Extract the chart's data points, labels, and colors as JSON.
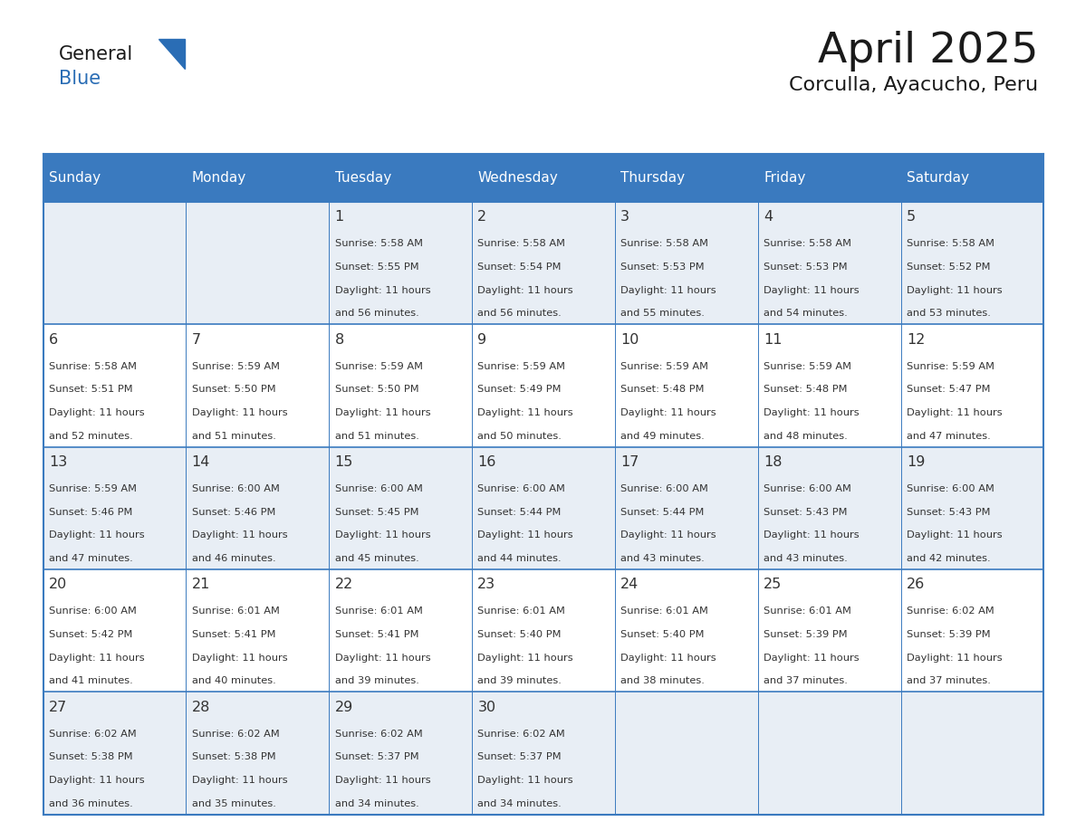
{
  "title": "April 2025",
  "subtitle": "Corculla, Ayacucho, Peru",
  "header_color": "#3a7abf",
  "header_text_color": "#ffffff",
  "border_color": "#3a7abf",
  "row_sep_color": "#3a7abf",
  "cell_bg_row0": "#e8eef5",
  "cell_bg_row1": "#ffffff",
  "cell_bg_row2": "#e8eef5",
  "cell_bg_row3": "#ffffff",
  "cell_bg_row4": "#e8eef5",
  "day_names": [
    "Sunday",
    "Monday",
    "Tuesday",
    "Wednesday",
    "Thursday",
    "Friday",
    "Saturday"
  ],
  "title_color": "#1a1a1a",
  "subtitle_color": "#1a1a1a",
  "logo_general_color": "#1a1a1a",
  "logo_blue_color": "#2a6db5",
  "text_color": "#333333",
  "days": [
    {
      "day": 1,
      "col": 2,
      "row": 0,
      "sunrise": "5:58 AM",
      "sunset": "5:55 PM",
      "daylight_h": "11 hours",
      "daylight_m": "56 minutes."
    },
    {
      "day": 2,
      "col": 3,
      "row": 0,
      "sunrise": "5:58 AM",
      "sunset": "5:54 PM",
      "daylight_h": "11 hours",
      "daylight_m": "56 minutes."
    },
    {
      "day": 3,
      "col": 4,
      "row": 0,
      "sunrise": "5:58 AM",
      "sunset": "5:53 PM",
      "daylight_h": "11 hours",
      "daylight_m": "55 minutes."
    },
    {
      "day": 4,
      "col": 5,
      "row": 0,
      "sunrise": "5:58 AM",
      "sunset": "5:53 PM",
      "daylight_h": "11 hours",
      "daylight_m": "54 minutes."
    },
    {
      "day": 5,
      "col": 6,
      "row": 0,
      "sunrise": "5:58 AM",
      "sunset": "5:52 PM",
      "daylight_h": "11 hours",
      "daylight_m": "53 minutes."
    },
    {
      "day": 6,
      "col": 0,
      "row": 1,
      "sunrise": "5:58 AM",
      "sunset": "5:51 PM",
      "daylight_h": "11 hours",
      "daylight_m": "52 minutes."
    },
    {
      "day": 7,
      "col": 1,
      "row": 1,
      "sunrise": "5:59 AM",
      "sunset": "5:50 PM",
      "daylight_h": "11 hours",
      "daylight_m": "51 minutes."
    },
    {
      "day": 8,
      "col": 2,
      "row": 1,
      "sunrise": "5:59 AM",
      "sunset": "5:50 PM",
      "daylight_h": "11 hours",
      "daylight_m": "51 minutes."
    },
    {
      "day": 9,
      "col": 3,
      "row": 1,
      "sunrise": "5:59 AM",
      "sunset": "5:49 PM",
      "daylight_h": "11 hours",
      "daylight_m": "50 minutes."
    },
    {
      "day": 10,
      "col": 4,
      "row": 1,
      "sunrise": "5:59 AM",
      "sunset": "5:48 PM",
      "daylight_h": "11 hours",
      "daylight_m": "49 minutes."
    },
    {
      "day": 11,
      "col": 5,
      "row": 1,
      "sunrise": "5:59 AM",
      "sunset": "5:48 PM",
      "daylight_h": "11 hours",
      "daylight_m": "48 minutes."
    },
    {
      "day": 12,
      "col": 6,
      "row": 1,
      "sunrise": "5:59 AM",
      "sunset": "5:47 PM",
      "daylight_h": "11 hours",
      "daylight_m": "47 minutes."
    },
    {
      "day": 13,
      "col": 0,
      "row": 2,
      "sunrise": "5:59 AM",
      "sunset": "5:46 PM",
      "daylight_h": "11 hours",
      "daylight_m": "47 minutes."
    },
    {
      "day": 14,
      "col": 1,
      "row": 2,
      "sunrise": "6:00 AM",
      "sunset": "5:46 PM",
      "daylight_h": "11 hours",
      "daylight_m": "46 minutes."
    },
    {
      "day": 15,
      "col": 2,
      "row": 2,
      "sunrise": "6:00 AM",
      "sunset": "5:45 PM",
      "daylight_h": "11 hours",
      "daylight_m": "45 minutes."
    },
    {
      "day": 16,
      "col": 3,
      "row": 2,
      "sunrise": "6:00 AM",
      "sunset": "5:44 PM",
      "daylight_h": "11 hours",
      "daylight_m": "44 minutes."
    },
    {
      "day": 17,
      "col": 4,
      "row": 2,
      "sunrise": "6:00 AM",
      "sunset": "5:44 PM",
      "daylight_h": "11 hours",
      "daylight_m": "43 minutes."
    },
    {
      "day": 18,
      "col": 5,
      "row": 2,
      "sunrise": "6:00 AM",
      "sunset": "5:43 PM",
      "daylight_h": "11 hours",
      "daylight_m": "43 minutes."
    },
    {
      "day": 19,
      "col": 6,
      "row": 2,
      "sunrise": "6:00 AM",
      "sunset": "5:43 PM",
      "daylight_h": "11 hours",
      "daylight_m": "42 minutes."
    },
    {
      "day": 20,
      "col": 0,
      "row": 3,
      "sunrise": "6:00 AM",
      "sunset": "5:42 PM",
      "daylight_h": "11 hours",
      "daylight_m": "41 minutes."
    },
    {
      "day": 21,
      "col": 1,
      "row": 3,
      "sunrise": "6:01 AM",
      "sunset": "5:41 PM",
      "daylight_h": "11 hours",
      "daylight_m": "40 minutes."
    },
    {
      "day": 22,
      "col": 2,
      "row": 3,
      "sunrise": "6:01 AM",
      "sunset": "5:41 PM",
      "daylight_h": "11 hours",
      "daylight_m": "39 minutes."
    },
    {
      "day": 23,
      "col": 3,
      "row": 3,
      "sunrise": "6:01 AM",
      "sunset": "5:40 PM",
      "daylight_h": "11 hours",
      "daylight_m": "39 minutes."
    },
    {
      "day": 24,
      "col": 4,
      "row": 3,
      "sunrise": "6:01 AM",
      "sunset": "5:40 PM",
      "daylight_h": "11 hours",
      "daylight_m": "38 minutes."
    },
    {
      "day": 25,
      "col": 5,
      "row": 3,
      "sunrise": "6:01 AM",
      "sunset": "5:39 PM",
      "daylight_h": "11 hours",
      "daylight_m": "37 minutes."
    },
    {
      "day": 26,
      "col": 6,
      "row": 3,
      "sunrise": "6:02 AM",
      "sunset": "5:39 PM",
      "daylight_h": "11 hours",
      "daylight_m": "37 minutes."
    },
    {
      "day": 27,
      "col": 0,
      "row": 4,
      "sunrise": "6:02 AM",
      "sunset": "5:38 PM",
      "daylight_h": "11 hours",
      "daylight_m": "36 minutes."
    },
    {
      "day": 28,
      "col": 1,
      "row": 4,
      "sunrise": "6:02 AM",
      "sunset": "5:38 PM",
      "daylight_h": "11 hours",
      "daylight_m": "35 minutes."
    },
    {
      "day": 29,
      "col": 2,
      "row": 4,
      "sunrise": "6:02 AM",
      "sunset": "5:37 PM",
      "daylight_h": "11 hours",
      "daylight_m": "34 minutes."
    },
    {
      "day": 30,
      "col": 3,
      "row": 4,
      "sunrise": "6:02 AM",
      "sunset": "5:37 PM",
      "daylight_h": "11 hours",
      "daylight_m": "34 minutes."
    }
  ]
}
